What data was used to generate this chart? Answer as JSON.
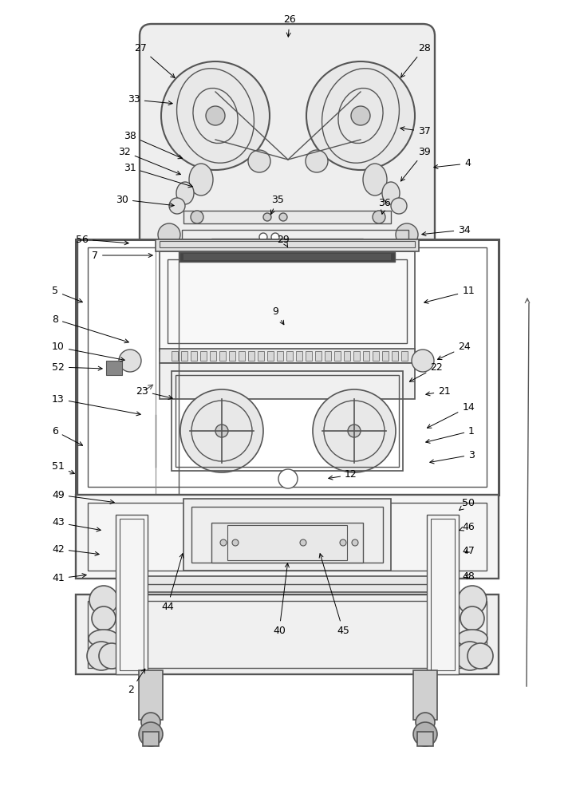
{
  "bg_color": "#f5f5f5",
  "line_color": "#555555",
  "line_width": 1.2,
  "annotation_color": "#333333",
  "figsize": [
    7.22,
    10.0
  ],
  "dpi": 100
}
